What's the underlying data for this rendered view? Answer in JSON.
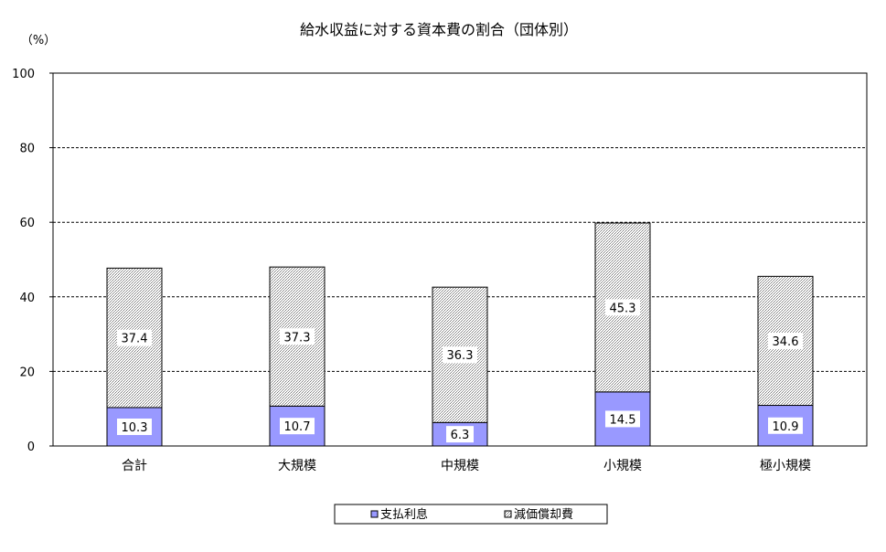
{
  "chart_data": {
    "type": "bar",
    "stacked": true,
    "title": "給水収益に対する資本費の割合（団体別）",
    "unit_label": "（%）",
    "categories": [
      "合計",
      "大規模",
      "中規模",
      "小規模",
      "極小規模"
    ],
    "series": [
      {
        "name": "支払利息",
        "values": [
          10.3,
          10.7,
          6.3,
          14.5,
          10.9
        ],
        "color": "#9999ff"
      },
      {
        "name": "減価償却費",
        "values": [
          37.4,
          37.3,
          36.3,
          45.3,
          34.6
        ],
        "color": "#c0c0c0"
      }
    ],
    "ylim": [
      0,
      100
    ],
    "yticks": [
      0,
      20,
      40,
      60,
      80,
      100
    ],
    "grid": true,
    "legend_position": "bottom"
  }
}
